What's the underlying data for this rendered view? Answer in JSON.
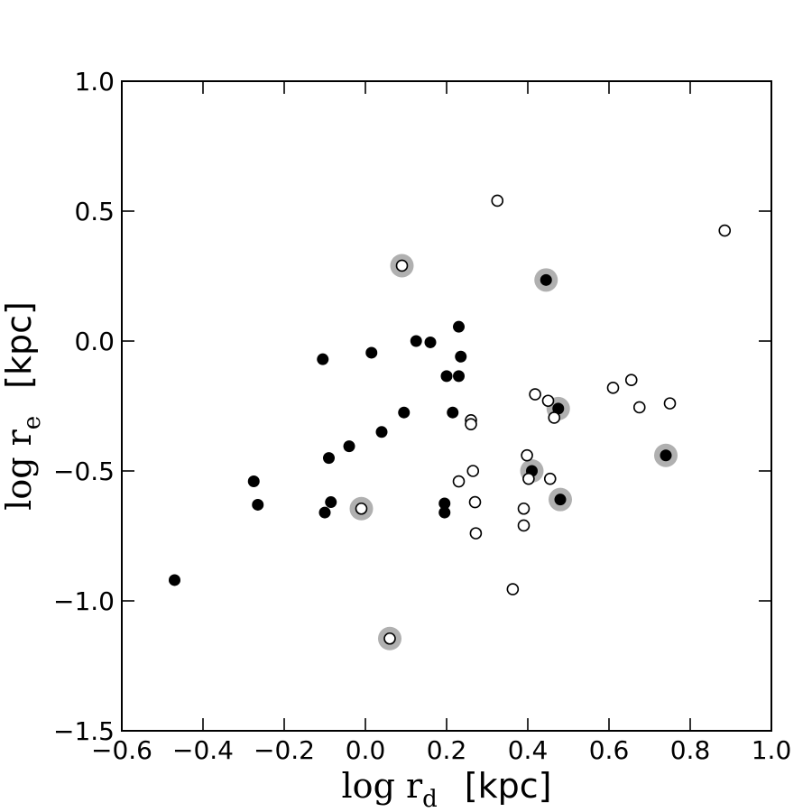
{
  "chart_data": {
    "type": "scatter",
    "title": "",
    "xlabel": {
      "main": "log r",
      "sub": "d",
      "unit": "[kpc]"
    },
    "ylabel": {
      "main": "log r",
      "sub": "e",
      "unit": "[kpc]"
    },
    "xlim": [
      -0.6,
      1.0
    ],
    "ylim": [
      -1.5,
      1.0
    ],
    "xticks": [
      -0.6,
      -0.4,
      -0.2,
      0.0,
      0.2,
      0.4,
      0.6,
      0.8,
      1.0
    ],
    "yticks": [
      -1.5,
      -1.0,
      -0.5,
      0.0,
      0.5,
      1.0
    ],
    "xtick_labels": [
      "−0.6",
      "−0.4",
      "−0.2",
      "0.0",
      "0.2",
      "0.4",
      "0.6",
      "0.8",
      "1.0"
    ],
    "ytick_labels": [
      "−1.5",
      "−1.0",
      "−0.5",
      "0.0",
      "0.5",
      "1.0"
    ],
    "grid": false,
    "highlight_color": "#b0b0b0",
    "series": [
      {
        "marker": "filled-circle",
        "color": "#000000",
        "points": [
          {
            "x": -0.47,
            "y": -0.92
          },
          {
            "x": -0.275,
            "y": -0.54
          },
          {
            "x": -0.265,
            "y": -0.63
          },
          {
            "x": -0.105,
            "y": -0.07
          },
          {
            "x": -0.1,
            "y": -0.66
          },
          {
            "x": -0.09,
            "y": -0.45
          },
          {
            "x": -0.085,
            "y": -0.62
          },
          {
            "x": -0.04,
            "y": -0.405
          },
          {
            "x": 0.015,
            "y": -0.045
          },
          {
            "x": 0.04,
            "y": -0.35
          },
          {
            "x": 0.095,
            "y": -0.275
          },
          {
            "x": 0.125,
            "y": 0.0
          },
          {
            "x": 0.16,
            "y": -0.005
          },
          {
            "x": 0.195,
            "y": -0.625
          },
          {
            "x": 0.195,
            "y": -0.66
          },
          {
            "x": 0.2,
            "y": -0.135
          },
          {
            "x": 0.215,
            "y": -0.275
          },
          {
            "x": 0.23,
            "y": 0.055
          },
          {
            "x": 0.23,
            "y": -0.135
          },
          {
            "x": 0.235,
            "y": -0.06
          },
          {
            "x": 0.41,
            "y": -0.5,
            "highlight": true
          },
          {
            "x": 0.445,
            "y": 0.235,
            "highlight": true
          },
          {
            "x": 0.475,
            "y": -0.26,
            "highlight": true
          },
          {
            "x": 0.48,
            "y": -0.61,
            "highlight": true
          },
          {
            "x": 0.74,
            "y": -0.44,
            "highlight": true
          }
        ]
      },
      {
        "marker": "open-circle",
        "color": "#000000",
        "points": [
          {
            "x": -0.01,
            "y": -0.645,
            "highlight": true
          },
          {
            "x": 0.06,
            "y": -1.145,
            "highlight": true
          },
          {
            "x": 0.09,
            "y": 0.29,
            "highlight": true
          },
          {
            "x": 0.23,
            "y": -0.54
          },
          {
            "x": 0.26,
            "y": -0.305
          },
          {
            "x": 0.26,
            "y": -0.32
          },
          {
            "x": 0.265,
            "y": -0.5
          },
          {
            "x": 0.27,
            "y": -0.62
          },
          {
            "x": 0.272,
            "y": -0.74
          },
          {
            "x": 0.325,
            "y": 0.54
          },
          {
            "x": 0.363,
            "y": -0.955
          },
          {
            "x": 0.39,
            "y": -0.645
          },
          {
            "x": 0.39,
            "y": -0.71
          },
          {
            "x": 0.398,
            "y": -0.44
          },
          {
            "x": 0.402,
            "y": -0.53
          },
          {
            "x": 0.418,
            "y": -0.205
          },
          {
            "x": 0.45,
            "y": -0.23
          },
          {
            "x": 0.455,
            "y": -0.53
          },
          {
            "x": 0.465,
            "y": -0.295
          },
          {
            "x": 0.61,
            "y": -0.18
          },
          {
            "x": 0.655,
            "y": -0.15
          },
          {
            "x": 0.675,
            "y": -0.255
          },
          {
            "x": 0.75,
            "y": -0.24
          },
          {
            "x": 0.885,
            "y": 0.425
          }
        ]
      }
    ]
  }
}
